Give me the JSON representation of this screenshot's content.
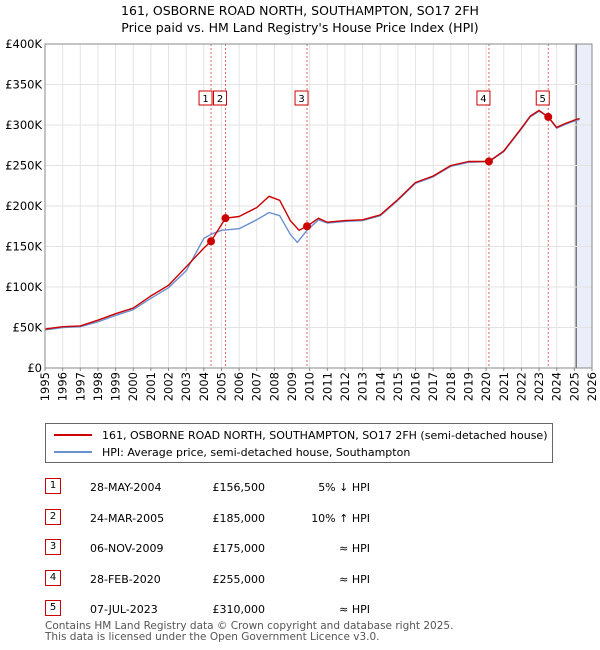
{
  "header": {
    "title_line1": "161, OSBORNE ROAD NORTH, SOUTHAMPTON, SO17 2FH",
    "title_line2": "Price paid vs. HM Land Registry's House Price Index (HPI)"
  },
  "colors": {
    "price_line": "#cc0000",
    "hpi_line": "#6a8fcf",
    "shade": "#eaeef8",
    "marker": "#cc0000"
  },
  "legend": {
    "price_label": "161, OSBORNE ROAD NORTH, SOUTHAMPTON, SO17 2FH (semi-detached house)",
    "hpi_label": "HPI: Average price, semi-detached house, Southampton"
  },
  "sales": [
    {
      "num": "1",
      "date": "28-MAY-2004",
      "price": "£156,500",
      "relation": "5% ↓ HPI"
    },
    {
      "num": "2",
      "date": "24-MAR-2005",
      "price": "£185,000",
      "relation": "10% ↑ HPI"
    },
    {
      "num": "3",
      "date": "06-NOV-2009",
      "price": "£175,000",
      "relation": "≈ HPI"
    },
    {
      "num": "4",
      "date": "28-FEB-2020",
      "price": "£255,000",
      "relation": "≈ HPI"
    },
    {
      "num": "5",
      "date": "07-JUL-2023",
      "price": "£310,000",
      "relation": "≈ HPI"
    }
  ],
  "footer": {
    "line1": "Contains HM Land Registry data © Crown copyright and database right 2025.",
    "line2": "This data is licensed under the Open Government Licence v3.0."
  },
  "chart_data": {
    "type": "line",
    "title": "161, OSBORNE ROAD NORTH, SOUTHAMPTON, SO17 2FH — Price paid vs. HM Land Registry's House Price Index (HPI)",
    "xlabel": "",
    "ylabel": "",
    "xlim": [
      1995,
      2026
    ],
    "ylim": [
      0,
      400000
    ],
    "x_ticks": [
      1995,
      1996,
      1997,
      1998,
      1999,
      2000,
      2001,
      2002,
      2003,
      2004,
      2005,
      2006,
      2007,
      2008,
      2009,
      2010,
      2011,
      2012,
      2013,
      2014,
      2015,
      2016,
      2017,
      2018,
      2019,
      2020,
      2021,
      2022,
      2023,
      2024,
      2025,
      2026
    ],
    "y_ticks": [
      0,
      50000,
      100000,
      150000,
      200000,
      250000,
      300000,
      350000,
      400000
    ],
    "y_tick_labels": [
      "£0",
      "£50K",
      "£100K",
      "£150K",
      "£200K",
      "£250K",
      "£300K",
      "£350K",
      "£400K"
    ],
    "grid": true,
    "future_shade_from": 2025.1,
    "sale_markers": [
      {
        "label": "1",
        "x": 2004.41,
        "y": 156500
      },
      {
        "label": "2",
        "x": 2005.23,
        "y": 185000
      },
      {
        "label": "3",
        "x": 2009.85,
        "y": 175000
      },
      {
        "label": "4",
        "x": 2020.16,
        "y": 255000
      },
      {
        "label": "5",
        "x": 2023.52,
        "y": 310000
      }
    ],
    "series": [
      {
        "name": "161, OSBORNE ROAD NORTH, SOUTHAMPTON, SO17 2FH (semi-detached house)",
        "x": [
          1995,
          1996,
          1997,
          1998,
          1999,
          2000,
          2001,
          2002,
          2003,
          2004,
          2004.41,
          2005.23,
          2006,
          2007,
          2007.7,
          2008.3,
          2008.9,
          2009.4,
          2009.85,
          2010.5,
          2011,
          2012,
          2013,
          2014,
          2015,
          2016,
          2017,
          2018,
          2019,
          2020.16,
          2021,
          2022,
          2022.5,
          2023,
          2023.52,
          2024,
          2024.5,
          2025,
          2025.3
        ],
        "y": [
          48000,
          51000,
          52000,
          59000,
          67000,
          74000,
          89000,
          102000,
          125000,
          148000,
          156500,
          185000,
          187000,
          198000,
          212000,
          207000,
          182000,
          170000,
          175000,
          185000,
          180000,
          182000,
          183000,
          189000,
          208000,
          229000,
          237000,
          250000,
          255000,
          255000,
          268000,
          296000,
          311000,
          318000,
          310000,
          297000,
          302000,
          306000,
          308000
        ]
      },
      {
        "name": "HPI: Average price, semi-detached house, Southampton",
        "x": [
          1995,
          1996,
          1997,
          1998,
          1999,
          2000,
          2001,
          2002,
          2003,
          2004,
          2004.41,
          2005,
          2006,
          2007,
          2007.7,
          2008.3,
          2008.9,
          2009.3,
          2009.85,
          2010.5,
          2011,
          2012,
          2013,
          2014,
          2015,
          2016,
          2017,
          2018,
          2019,
          2020.16,
          2021,
          2022,
          2022.5,
          2023,
          2023.52,
          2024,
          2024.5,
          2025,
          2025.3
        ],
        "y": [
          47000,
          50000,
          51000,
          57000,
          65000,
          72000,
          86000,
          99000,
          120000,
          160000,
          165000,
          170000,
          172000,
          183000,
          192000,
          188000,
          165000,
          155000,
          170000,
          183000,
          179000,
          181000,
          182000,
          188000,
          207000,
          228000,
          236000,
          249000,
          254000,
          255000,
          267000,
          295000,
          310000,
          317000,
          310000,
          296000,
          301000,
          305000,
          307000
        ]
      }
    ]
  }
}
